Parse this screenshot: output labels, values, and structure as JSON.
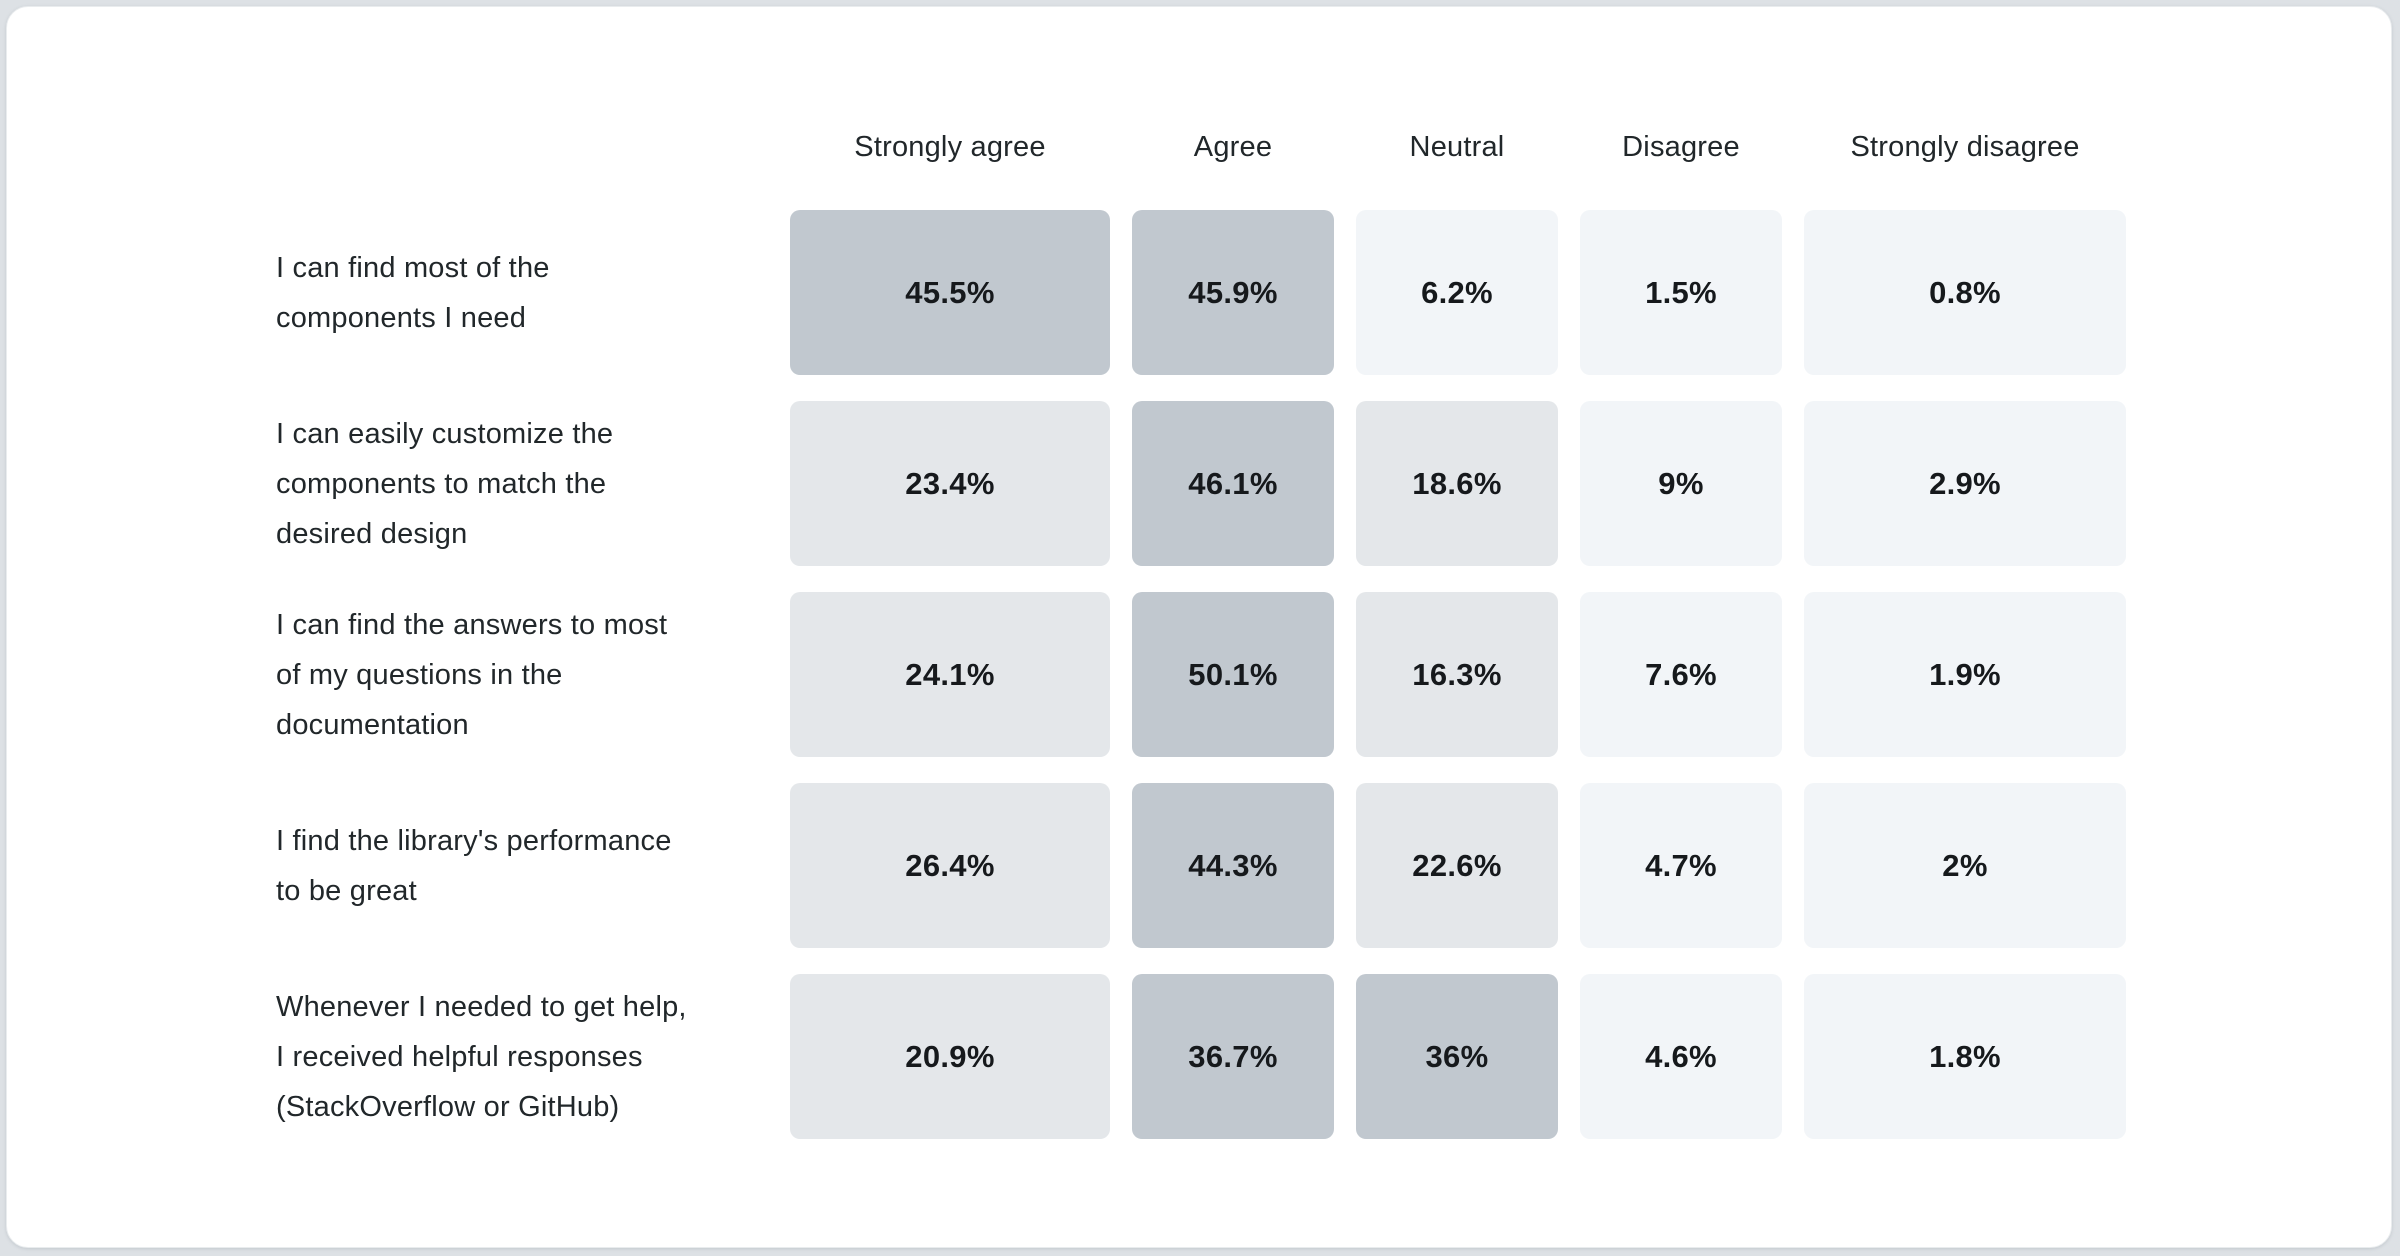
{
  "page": {
    "background": "#dde1e5",
    "card_background": "#ffffff"
  },
  "table": {
    "columns": [
      "Strongly agree",
      "Agree",
      "Neutral",
      "Disagree",
      "Strongly disagree"
    ],
    "rows": [
      {
        "label": "I can find most of the\ncomponents I need",
        "values": [
          "45.5%",
          "45.9%",
          "6.2%",
          "1.5%",
          "0.8%"
        ]
      },
      {
        "label": "I can easily customize the\ncomponents to match the\ndesired design",
        "values": [
          "23.4%",
          "46.1%",
          "18.6%",
          "9%",
          "2.9%"
        ]
      },
      {
        "label": "I can find the answers to most\nof my questions in the\ndocumentation",
        "values": [
          "24.1%",
          "50.1%",
          "16.3%",
          "7.6%",
          "1.9%"
        ]
      },
      {
        "label": "I find the library's performance\nto be great",
        "values": [
          "26.4%",
          "44.3%",
          "22.6%",
          "4.7%",
          "2%"
        ]
      },
      {
        "label": "Whenever I needed to get help,\nI received helpful responses\n(StackOverflow or GitHub)",
        "values": [
          "20.9%",
          "36.7%",
          "36%",
          "4.6%",
          "1.8%"
        ]
      }
    ]
  },
  "chart_data": {
    "type": "heatmap",
    "title": "",
    "categories": [
      "Strongly agree",
      "Agree",
      "Neutral",
      "Disagree",
      "Strongly disagree"
    ],
    "rows": [
      "I can find most of the components I need",
      "I can easily customize the components to match the desired design",
      "I can find the answers to most of my questions in the documentation",
      "I find the library's performance to be great",
      "Whenever I needed to get help, I received helpful responses (StackOverflow or GitHub)"
    ],
    "values": [
      [
        45.5,
        45.9,
        6.2,
        1.5,
        0.8
      ],
      [
        23.4,
        46.1,
        18.6,
        9,
        2.9
      ],
      [
        24.1,
        50.1,
        16.3,
        7.6,
        1.9
      ],
      [
        26.4,
        44.3,
        22.6,
        4.7,
        2
      ],
      [
        20.9,
        36.7,
        36,
        4.6,
        1.8
      ]
    ],
    "unit": "%",
    "legend_position": "none",
    "grid": false,
    "cell_colors": {
      "high": "#c1c8cf",
      "mid": "#e4e7ea",
      "low": "#f2f5f8"
    },
    "thresholds": {
      "high": 30,
      "mid": 10
    }
  }
}
